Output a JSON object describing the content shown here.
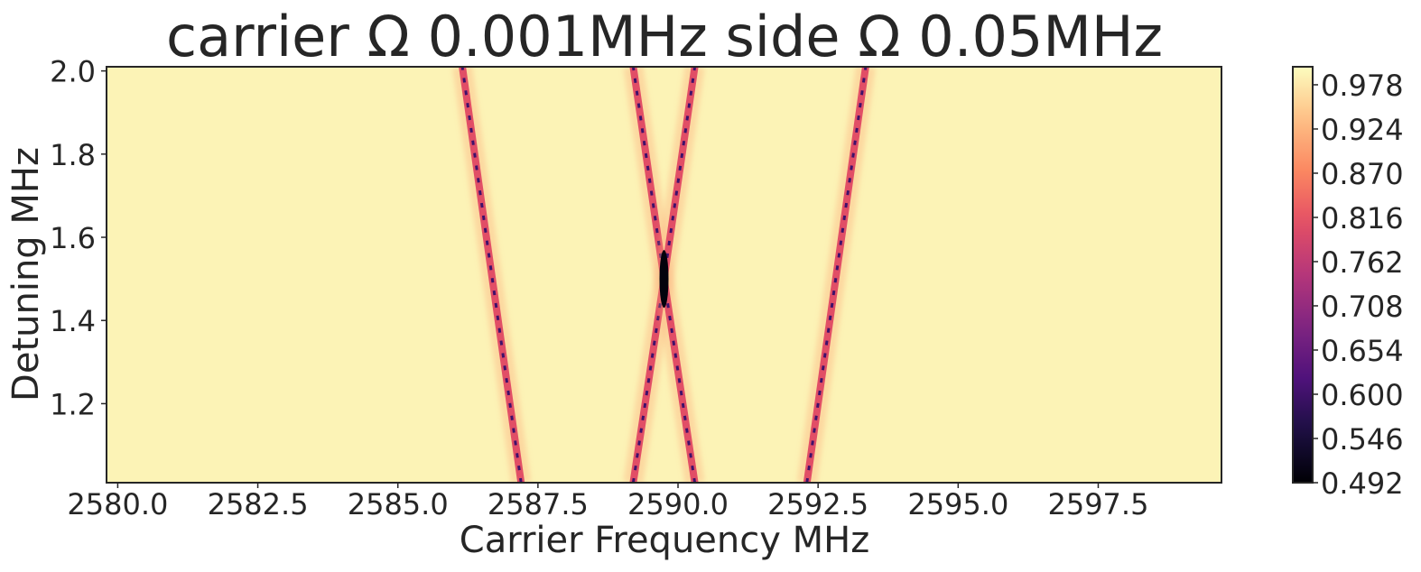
{
  "chart_data": {
    "type": "heatmap",
    "title": "carrier Ω 0.001MHz side Ω 0.05MHz",
    "xlabel": "Carrier Frequency MHz",
    "ylabel": "Detuning MHz",
    "xlim": [
      2579.8,
      2599.7
    ],
    "ylim": [
      1.01,
      2.01
    ],
    "xticks": [
      2580.0,
      2582.5,
      2585.0,
      2587.5,
      2590.0,
      2592.5,
      2595.0,
      2597.5
    ],
    "xtick_labels": [
      "2580.0",
      "2582.5",
      "2585.0",
      "2587.5",
      "2590.0",
      "2592.5",
      "2595.0",
      "2597.5"
    ],
    "yticks": [
      1.2,
      1.4,
      1.6,
      1.8,
      2.0
    ],
    "ytick_labels": [
      "1.2",
      "1.4",
      "1.6",
      "1.8",
      "2.0"
    ],
    "colormap": "magma",
    "colorbar": {
      "min": 0.492,
      "max": 1.0,
      "ticks": [
        0.492,
        0.546,
        0.6,
        0.654,
        0.708,
        0.762,
        0.816,
        0.87,
        0.924,
        0.978
      ],
      "tick_labels": [
        "0.492",
        "0.546",
        "0.600",
        "0.654",
        "0.708",
        "0.762",
        "0.816",
        "0.870",
        "0.924",
        "0.978"
      ]
    },
    "background_value": 0.99,
    "resonance_lines": [
      {
        "points": [
          [
            2587.2,
            1.01
          ],
          [
            2586.15,
            2.01
          ]
        ],
        "min_value": 0.6
      },
      {
        "points": [
          [
            2589.2,
            1.01
          ],
          [
            2589.75,
            1.5
          ],
          [
            2589.2,
            2.01
          ]
        ],
        "min_value": 0.6
      },
      {
        "points": [
          [
            2590.3,
            1.01
          ],
          [
            2589.75,
            1.5
          ],
          [
            2590.3,
            2.01
          ]
        ],
        "min_value": 0.6
      },
      {
        "points": [
          [
            2592.3,
            1.01
          ],
          [
            2593.35,
            2.01
          ]
        ],
        "min_value": 0.6
      }
    ],
    "crossing_minimum": {
      "x": 2589.75,
      "y": 1.5,
      "value": 0.5
    },
    "grid": false
  }
}
